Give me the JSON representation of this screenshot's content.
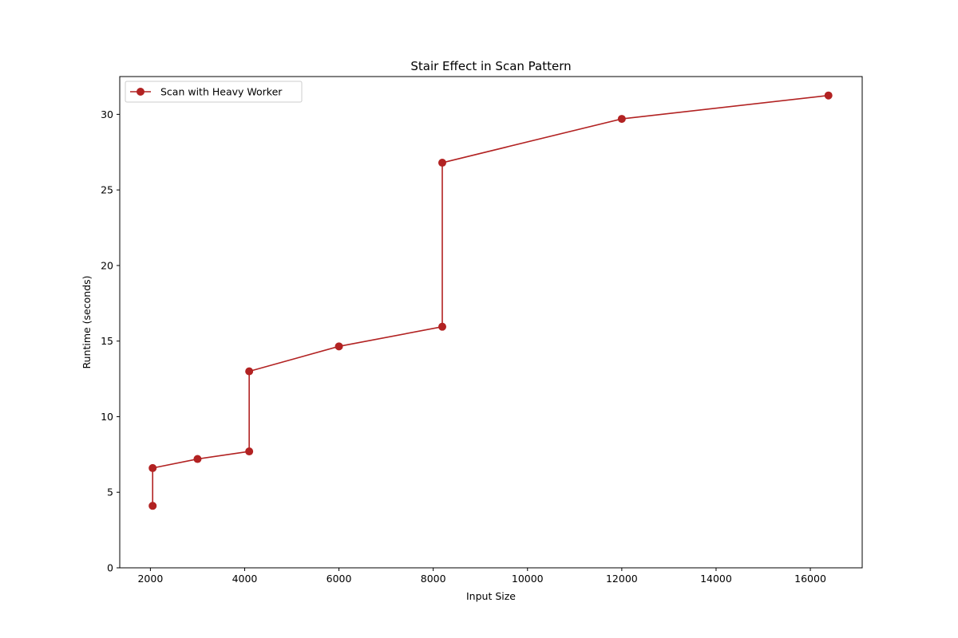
{
  "chart_data": {
    "type": "line",
    "title": "Stair Effect in Scan Pattern",
    "xlabel": "Input Size",
    "ylabel": "Runtime (seconds)",
    "xlim": [
      1350,
      17100
    ],
    "ylim": [
      0,
      32.5
    ],
    "xticks": [
      2000,
      4000,
      6000,
      8000,
      10000,
      12000,
      14000,
      16000
    ],
    "yticks": [
      0,
      5,
      10,
      15,
      20,
      25,
      30
    ],
    "grid": false,
    "legend_position": "top-left",
    "series": [
      {
        "name": "Scan with Heavy Worker",
        "color": "#b22222",
        "marker": "circle",
        "x": [
          2048,
          2048,
          3000,
          4096,
          4096,
          6000,
          8192,
          8192,
          12000,
          16384
        ],
        "y": [
          4.1,
          6.6,
          7.2,
          7.7,
          13.0,
          14.65,
          15.95,
          26.8,
          29.7,
          31.25
        ]
      }
    ]
  }
}
